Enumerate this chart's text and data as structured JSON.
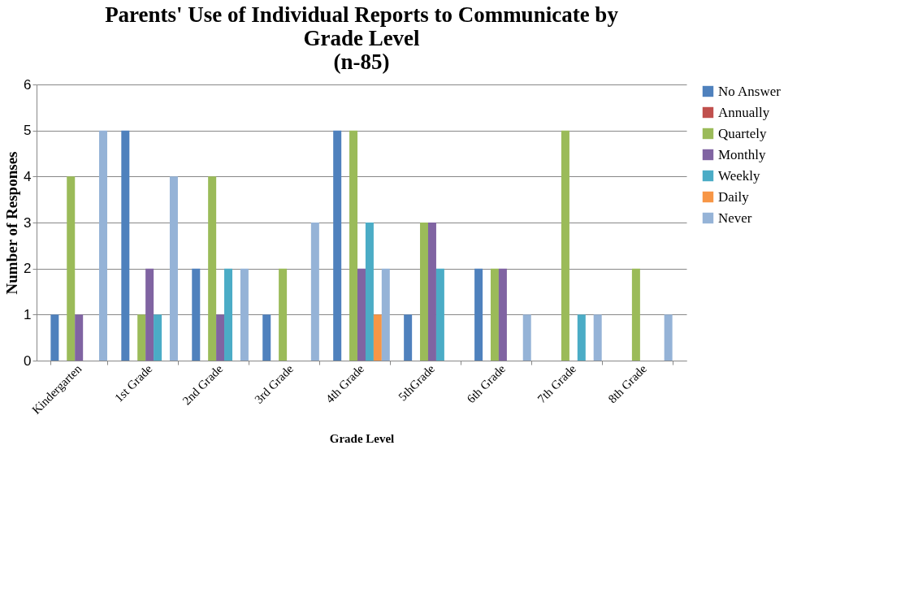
{
  "chart_data": {
    "type": "bar",
    "title": [
      "Parents' Use of Individual Reports to Communicate by",
      "Grade Level",
      "(n-85)"
    ],
    "xlabel": "Grade Level",
    "ylabel": "Number of Responses",
    "categories": [
      "Kindergarten",
      "1st Grade",
      "2nd Grade",
      "3rd Grade",
      "4th Grade",
      "5thGrade",
      "6th Grade",
      "7th Grade",
      "8th Grade"
    ],
    "series": [
      {
        "name": "No Answer",
        "color": "#4f81bd",
        "values": [
          1,
          5,
          2,
          1,
          5,
          1,
          2,
          0,
          0
        ]
      },
      {
        "name": "Annually",
        "color": "#c0504d",
        "values": [
          0,
          0,
          0,
          0,
          0,
          0,
          0,
          0,
          0
        ]
      },
      {
        "name": "Quartely",
        "color": "#9bbb59",
        "values": [
          4,
          1,
          4,
          2,
          5,
          3,
          2,
          5,
          2
        ]
      },
      {
        "name": "Monthly",
        "color": "#8064a2",
        "values": [
          1,
          2,
          1,
          0,
          2,
          3,
          2,
          0,
          0
        ]
      },
      {
        "name": "Weekly",
        "color": "#4bacc6",
        "values": [
          0,
          1,
          2,
          0,
          3,
          2,
          0,
          1,
          0
        ]
      },
      {
        "name": "Daily",
        "color": "#f79646",
        "values": [
          0,
          0,
          0,
          0,
          1,
          0,
          0,
          0,
          0
        ]
      },
      {
        "name": "Never",
        "color": "#95b3d7",
        "values": [
          5,
          4,
          2,
          3,
          2,
          0,
          1,
          1,
          1
        ]
      }
    ],
    "ylim": [
      0,
      6
    ],
    "yticks": [
      0,
      1,
      2,
      3,
      4,
      5,
      6
    ],
    "grid": "y",
    "legend": "right"
  }
}
